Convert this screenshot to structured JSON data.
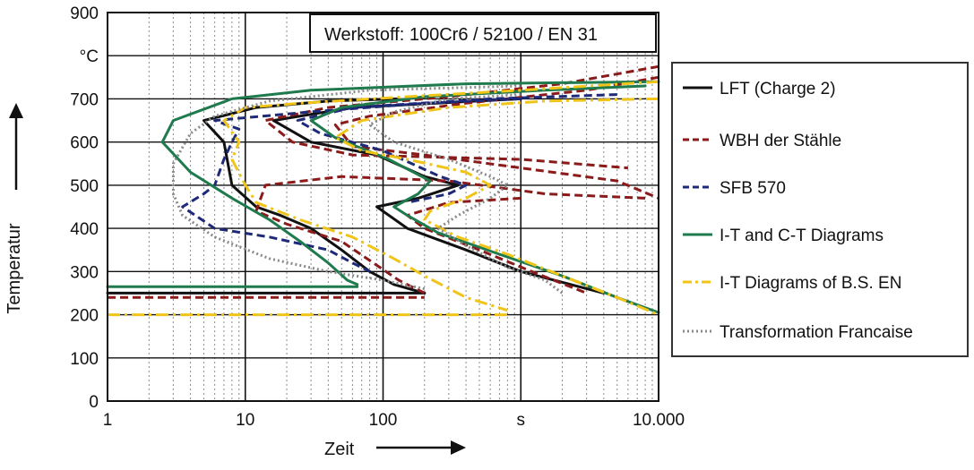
{
  "chart_data": {
    "type": "line",
    "xlabel": "Zeit",
    "ylabel": "Temperatur",
    "x_scale": "log",
    "xlim": [
      1,
      10000
    ],
    "ylim": [
      0,
      900
    ],
    "x_ticks": [
      {
        "value": 1,
        "label": "1"
      },
      {
        "value": 10,
        "label": "10"
      },
      {
        "value": 100,
        "label": "100"
      },
      {
        "value": 1000,
        "label": "s"
      },
      {
        "value": 10000,
        "label": "10.000"
      }
    ],
    "y_ticks": [
      {
        "value": 0,
        "label": "0"
      },
      {
        "value": 100,
        "label": "100"
      },
      {
        "value": 200,
        "label": "200"
      },
      {
        "value": 300,
        "label": "300"
      },
      {
        "value": 400,
        "label": "400"
      },
      {
        "value": 500,
        "label": "500"
      },
      {
        "value": 600,
        "label": "600"
      },
      {
        "value": 700,
        "label": "700"
      },
      {
        "value": 800,
        "label": "°C"
      },
      {
        "value": 900,
        "label": "900"
      }
    ],
    "grid": true,
    "annotation": "Werkstoff: 100Cr6 / 52100 / EN 31",
    "legend_position": "right",
    "series": [
      {
        "name": "LFT (Charge 2)",
        "color": "#111111",
        "style": "solid",
        "curves": [
          [
            [
              130,
              700
            ],
            [
              40,
              695
            ],
            [
              12,
              680
            ],
            [
              5,
              650
            ],
            [
              7,
              600
            ],
            [
              8,
              500
            ],
            [
              12,
              450
            ],
            [
              18,
              430
            ],
            [
              30,
              400
            ],
            [
              50,
              350
            ],
            [
              80,
              300
            ],
            [
              120,
              270
            ],
            [
              200,
              250
            ]
          ],
          [
            [
              1,
              250
            ],
            [
              200,
              250
            ]
          ],
          [
            [
              1000,
              700
            ],
            [
              60,
              680
            ],
            [
              16,
              650
            ],
            [
              30,
              600
            ],
            [
              90,
              570
            ],
            [
              200,
              520
            ],
            [
              350,
              500
            ],
            [
              180,
              470
            ],
            [
              90,
              450
            ],
            [
              150,
              400
            ],
            [
              400,
              350
            ],
            [
              1000,
              300
            ],
            [
              4000,
              250
            ]
          ]
        ]
      },
      {
        "name": "WBH der Stähle",
        "color": "#8b1a1a",
        "style": "dashed",
        "curves": [
          [
            [
              10000,
              775
            ],
            [
              2000,
              735
            ],
            [
              300,
              705
            ],
            [
              40,
              680
            ],
            [
              14,
              650
            ],
            [
              22,
              600
            ],
            [
              60,
              570
            ],
            [
              1000,
              560
            ],
            [
              6000,
              540
            ]
          ],
          [
            [
              8000,
              470
            ],
            [
              1500,
              480
            ],
            [
              300,
              510
            ],
            [
              50,
              520
            ],
            [
              14,
              500
            ],
            [
              12,
              440
            ],
            [
              20,
              410
            ],
            [
              50,
              370
            ],
            [
              130,
              280
            ],
            [
              200,
              250
            ]
          ],
          [
            [
              1,
              240
            ],
            [
              200,
              240
            ]
          ],
          [
            [
              10000,
              750
            ],
            [
              3000,
              720
            ],
            [
              400,
              690
            ],
            [
              80,
              660
            ],
            [
              45,
              640
            ],
            [
              60,
              590
            ],
            [
              200,
              570
            ],
            [
              1000,
              540
            ],
            [
              5000,
              510
            ],
            [
              10000,
              470
            ]
          ],
          [
            [
              1000,
              470
            ],
            [
              300,
              460
            ],
            [
              150,
              430
            ],
            [
              200,
              400
            ],
            [
              500,
              350
            ],
            [
              1200,
              300
            ],
            [
              3000,
              250
            ]
          ]
        ]
      },
      {
        "name": "SFB 570",
        "color": "#1e2a78",
        "style": "dashed",
        "curves": [
          [
            [
              1000,
              700
            ],
            [
              200,
              690
            ],
            [
              30,
              670
            ],
            [
              6,
              650
            ],
            [
              9,
              630
            ],
            [
              8,
              600
            ],
            [
              7,
              560
            ],
            [
              6,
              500
            ],
            [
              5,
              480
            ],
            [
              3.5,
              450
            ],
            [
              6,
              400
            ],
            [
              15,
              380
            ],
            [
              40,
              350
            ],
            [
              60,
              320
            ],
            [
              80,
              300
            ]
          ],
          [
            [
              5000,
              710
            ],
            [
              600,
              700
            ],
            [
              60,
              680
            ],
            [
              24,
              650
            ],
            [
              35,
              620
            ],
            [
              100,
              580
            ],
            [
              260,
              520
            ],
            [
              400,
              500
            ],
            [
              300,
              480
            ],
            [
              150,
              460
            ]
          ]
        ]
      },
      {
        "name": "I-T and C-T Diagrams",
        "color": "#1f7a4d",
        "style": "solid",
        "curves": [
          [
            [
              10000,
              740
            ],
            [
              400,
              735
            ],
            [
              30,
              720
            ],
            [
              8,
              700
            ],
            [
              3,
              650
            ],
            [
              2.5,
              600
            ],
            [
              4,
              530
            ],
            [
              8,
              470
            ],
            [
              15,
              420
            ],
            [
              25,
              370
            ],
            [
              40,
              320
            ],
            [
              55,
              280
            ],
            [
              65,
              270
            ]
          ],
          [
            [
              1,
              265
            ],
            [
              65,
              265
            ]
          ],
          [
            [
              8000,
              730
            ],
            [
              1500,
              720
            ],
            [
              200,
              705
            ],
            [
              50,
              680
            ],
            [
              30,
              650
            ],
            [
              45,
              610
            ],
            [
              110,
              560
            ],
            [
              220,
              510
            ],
            [
              180,
              480
            ],
            [
              120,
              450
            ],
            [
              150,
              430
            ],
            [
              250,
              390
            ],
            [
              700,
              340
            ],
            [
              2000,
              290
            ],
            [
              5000,
              240
            ],
            [
              10000,
              205
            ]
          ]
        ]
      },
      {
        "name": "I-T Diagrams of B.S. EN",
        "color": "#f0c419",
        "style": "dashdot",
        "curves": [
          [
            [
              10000,
              740
            ],
            [
              1000,
              720
            ],
            [
              150,
              705
            ],
            [
              25,
              690
            ],
            [
              10,
              680
            ],
            [
              7,
              650
            ],
            [
              9,
              600
            ],
            [
              8,
              560
            ],
            [
              10,
              500
            ],
            [
              12,
              460
            ],
            [
              25,
              420
            ],
            [
              60,
              380
            ],
            [
              120,
              330
            ],
            [
              200,
              290
            ],
            [
              400,
              240
            ],
            [
              800,
              210
            ]
          ],
          [
            [
              1,
              200
            ],
            [
              800,
              200
            ]
          ],
          [
            [
              10000,
              700
            ],
            [
              1500,
              695
            ],
            [
              300,
              680
            ],
            [
              70,
              650
            ],
            [
              45,
              610
            ],
            [
              70,
              580
            ],
            [
              150,
              560
            ],
            [
              400,
              530
            ],
            [
              600,
              500
            ],
            [
              400,
              470
            ],
            [
              220,
              440
            ],
            [
              200,
              420
            ],
            [
              350,
              380
            ],
            [
              800,
              340
            ],
            [
              2000,
              290
            ],
            [
              5000,
              240
            ],
            [
              10000,
              200
            ]
          ]
        ]
      },
      {
        "name": "Transformation Francaise",
        "color": "#8a8a8a",
        "style": "dotted",
        "curves": [
          [
            [
              1000,
              730
            ],
            [
              80,
              720
            ],
            [
              15,
              695
            ],
            [
              6,
              660
            ],
            [
              4,
              620
            ],
            [
              3,
              550
            ],
            [
              3,
              480
            ],
            [
              3.5,
              430
            ],
            [
              6,
              380
            ],
            [
              15,
              330
            ],
            [
              40,
              300
            ],
            [
              100,
              280
            ],
            [
              200,
              260
            ]
          ],
          [
            [
              1000,
              710
            ],
            [
              300,
              700
            ],
            [
              120,
              670
            ],
            [
              80,
              640
            ],
            [
              120,
              600
            ],
            [
              300,
              560
            ],
            [
              600,
              520
            ],
            [
              800,
              500
            ],
            [
              600,
              470
            ],
            [
              350,
              430
            ],
            [
              250,
              400
            ],
            [
              400,
              360
            ],
            [
              800,
              310
            ],
            [
              1500,
              280
            ],
            [
              2000,
              250
            ]
          ]
        ]
      }
    ]
  }
}
